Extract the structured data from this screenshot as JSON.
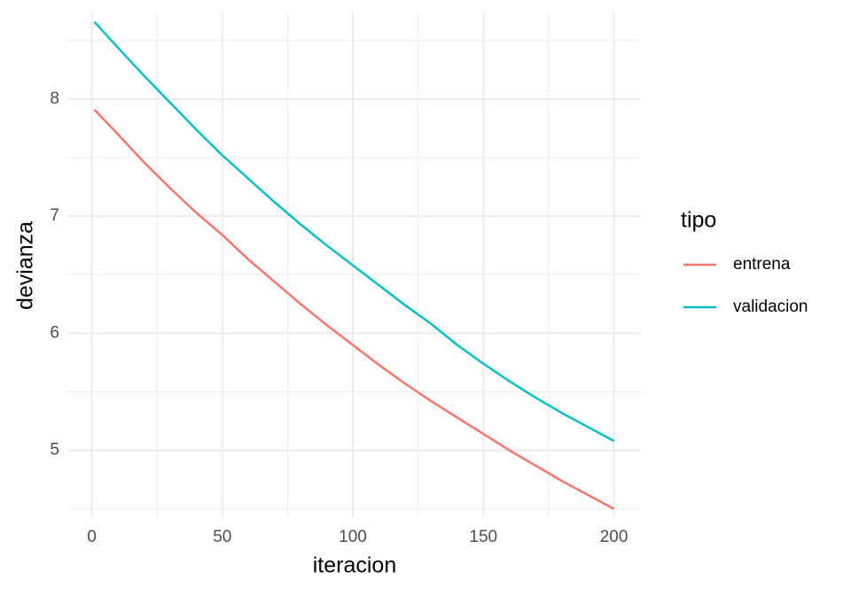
{
  "chart_data": {
    "type": "line",
    "x_label": "iteracion",
    "y_label": "devianza",
    "x": [
      1,
      10,
      20,
      30,
      40,
      50,
      60,
      70,
      80,
      90,
      100,
      110,
      120,
      130,
      140,
      150,
      160,
      170,
      180,
      190,
      200
    ],
    "series": [
      {
        "name": "entrena",
        "color": "#F8766D",
        "values": [
          7.91,
          7.7,
          7.46,
          7.24,
          7.03,
          6.84,
          6.63,
          6.44,
          6.25,
          6.07,
          5.9,
          5.73,
          5.57,
          5.42,
          5.28,
          5.14,
          5.0,
          4.87,
          4.74,
          4.62,
          4.5
        ]
      },
      {
        "name": "validacion",
        "color": "#00BFC4",
        "values": [
          8.66,
          8.44,
          8.2,
          7.97,
          7.74,
          7.52,
          7.32,
          7.12,
          6.93,
          6.75,
          6.58,
          6.41,
          6.24,
          6.08,
          5.9,
          5.74,
          5.59,
          5.45,
          5.32,
          5.2,
          5.08
        ]
      }
    ],
    "xlim": [
      -9,
      210
    ],
    "ylim": [
      4.43,
      8.74
    ],
    "xticks": [
      0,
      50,
      100,
      150,
      200
    ],
    "yticks": [
      5,
      6,
      7,
      8
    ],
    "xminorticks": [
      25,
      75,
      125,
      175
    ],
    "yminorticks": [
      4.5,
      5.5,
      6.5,
      7.5,
      8.5
    ],
    "grid": true,
    "legend_title": "tipo",
    "legend_position": "right"
  }
}
